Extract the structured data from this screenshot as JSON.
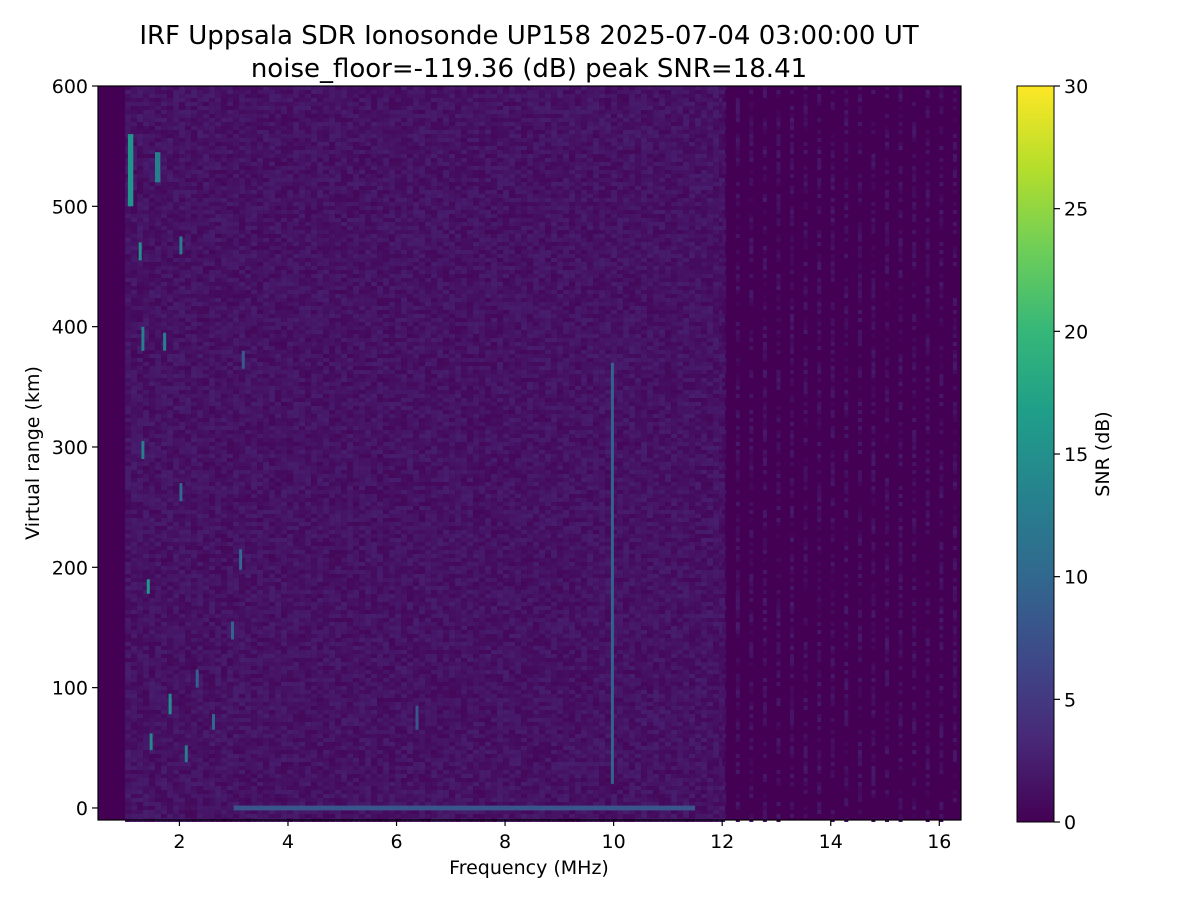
{
  "chart_data": {
    "type": "heatmap",
    "title": "IRF Uppsala SDR Ionosonde UP158 2025-07-04 03:00:00  UT",
    "subtitle": "noise_floor=-119.36 (dB) peak SNR=18.41",
    "xlabel": "Frequency (MHz)",
    "ylabel": "Virtual range (km)",
    "xlim": [
      0.5,
      16.4
    ],
    "ylim": [
      -10,
      600
    ],
    "xticks": [
      "2",
      "4",
      "6",
      "8",
      "10",
      "12",
      "14",
      "16"
    ],
    "yticks": [
      "0",
      "100",
      "200",
      "300",
      "400",
      "500",
      "600"
    ],
    "colorbar": {
      "label": "SNR (dB)",
      "range": [
        0,
        30
      ],
      "ticks": [
        "0",
        "5",
        "10",
        "15",
        "20",
        "25",
        "30"
      ],
      "colormap": "viridis",
      "colors": [
        "#440154",
        "#482878",
        "#3e4989",
        "#31688e",
        "#26828e",
        "#1f9e89",
        "#35b779",
        "#6ece58",
        "#b5de2b",
        "#fde725"
      ]
    },
    "background_snr": 0,
    "noise_band": [
      1.0,
      12.0
    ],
    "noise_level_snr": 1.5,
    "traces": [
      {
        "freq_range": [
          9.95,
          10.0
        ],
        "range_km": [
          20,
          370
        ],
        "snr": 9.5
      },
      {
        "freq_range": [
          3.0,
          11.5
        ],
        "range_km": [
          -2,
          2
        ],
        "snr": 8.0
      },
      {
        "freq_range": [
          1.05,
          1.15
        ],
        "range_km": [
          500,
          560
        ],
        "snr": 15.5
      },
      {
        "freq_range": [
          1.55,
          1.65
        ],
        "range_km": [
          520,
          545
        ],
        "snr": 13.0
      },
      {
        "freq_range": [
          1.25,
          1.3
        ],
        "range_km": [
          455,
          470
        ],
        "snr": 15.0
      },
      {
        "freq_range": [
          2.0,
          2.05
        ],
        "range_km": [
          460,
          475
        ],
        "snr": 13.0
      },
      {
        "freq_range": [
          1.3,
          1.35
        ],
        "range_km": [
          380,
          400
        ],
        "snr": 13.0
      },
      {
        "freq_range": [
          1.7,
          1.75
        ],
        "range_km": [
          380,
          395
        ],
        "snr": 13.0
      },
      {
        "freq_range": [
          1.3,
          1.35
        ],
        "range_km": [
          290,
          305
        ],
        "snr": 13.0
      },
      {
        "freq_range": [
          2.0,
          2.05
        ],
        "range_km": [
          255,
          270
        ],
        "snr": 10.0
      },
      {
        "freq_range": [
          1.4,
          1.45
        ],
        "range_km": [
          178,
          190
        ],
        "snr": 16.0
      },
      {
        "freq_range": [
          1.8,
          1.85
        ],
        "range_km": [
          78,
          95
        ],
        "snr": 14.5
      },
      {
        "freq_range": [
          1.45,
          1.5
        ],
        "range_km": [
          48,
          62
        ],
        "snr": 14.0
      },
      {
        "freq_range": [
          2.1,
          2.15
        ],
        "range_km": [
          38,
          52
        ],
        "snr": 12.5
      },
      {
        "freq_range": [
          6.35,
          6.4
        ],
        "range_km": [
          65,
          85
        ],
        "snr": 8.0
      },
      {
        "freq_range": [
          3.1,
          3.15
        ],
        "range_km": [
          198,
          215
        ],
        "snr": 10.0
      },
      {
        "freq_range": [
          2.95,
          3.0
        ],
        "range_km": [
          140,
          155
        ],
        "snr": 9.5
      },
      {
        "freq_range": [
          2.3,
          2.35
        ],
        "range_km": [
          100,
          115
        ],
        "snr": 9.0
      },
      {
        "freq_range": [
          3.15,
          3.2
        ],
        "range_km": [
          365,
          380
        ],
        "snr": 8.5
      },
      {
        "freq_range": [
          2.6,
          2.65
        ],
        "range_km": [
          65,
          78
        ],
        "snr": 10.0
      }
    ]
  }
}
